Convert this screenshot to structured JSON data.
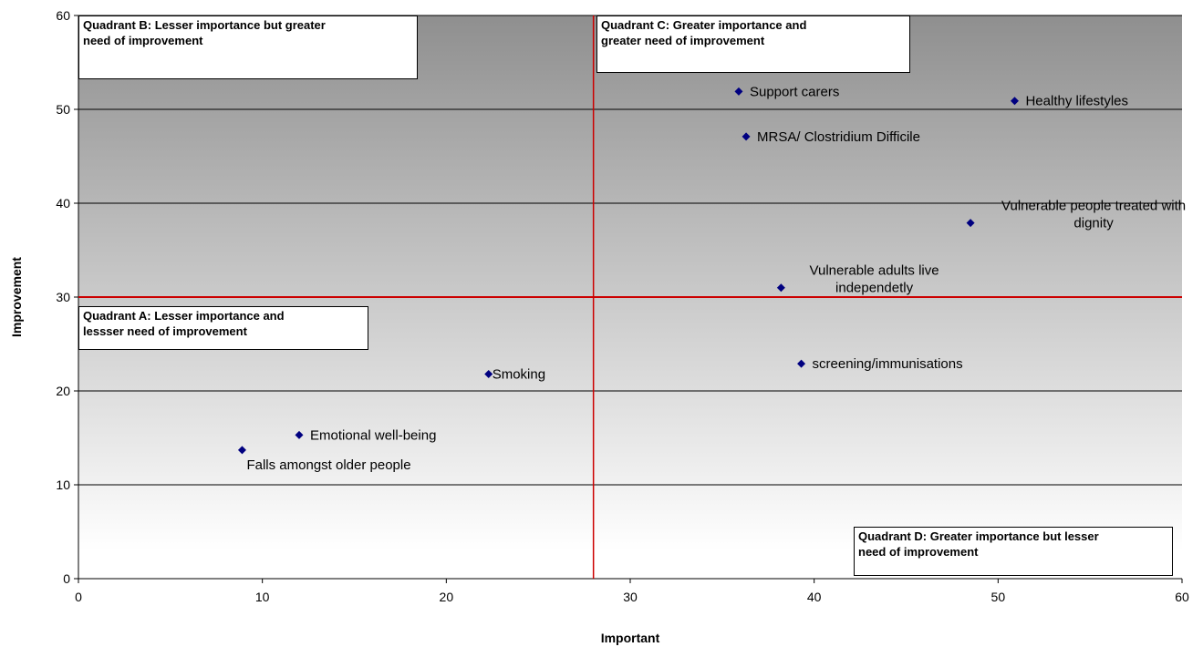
{
  "chart_data": {
    "type": "scatter",
    "xlabel": "Important",
    "ylabel": "Improvement",
    "xlim": [
      0,
      60
    ],
    "ylim": [
      0,
      60
    ],
    "xticks": [
      0,
      10,
      20,
      30,
      40,
      50,
      60
    ],
    "yticks": [
      0,
      10,
      20,
      30,
      40,
      50,
      60
    ],
    "grid": "horizontal",
    "quadrant_lines": {
      "x": 28,
      "y": 30
    },
    "colors": {
      "marker": "#000080",
      "quadrant_line": "#cc0000",
      "bg_top": "#8f8f8f",
      "bg_bottom": "#ffffff"
    },
    "points": [
      {
        "label": "Support carers",
        "x": 35.9,
        "y": 51.9,
        "label_pos": "right"
      },
      {
        "label": "Healthy lifestyles",
        "x": 50.9,
        "y": 50.9,
        "label_pos": "right"
      },
      {
        "label": "MRSA/ Clostridium Difficile",
        "x": 36.3,
        "y": 47.1,
        "label_pos": "right"
      },
      {
        "label": "Vulnerable people treated with dignity",
        "x": 48.5,
        "y": 37.9,
        "label_pos": "above-right-wrap",
        "label_lines": [
          "Vulnerable people treated with",
          "dignity"
        ]
      },
      {
        "label": "Vulnerable adults live independetly",
        "x": 38.2,
        "y": 31.0,
        "label_pos": "above-right-wrap",
        "label_lines": [
          "Vulnerable adults live",
          "independetly"
        ]
      },
      {
        "label": "screening/immunisations",
        "x": 39.3,
        "y": 22.9,
        "label_pos": "right"
      },
      {
        "label": "Smoking",
        "x": 22.3,
        "y": 21.8,
        "label_pos": "right-tight"
      },
      {
        "label": "Emotional well-being",
        "x": 12.0,
        "y": 15.3,
        "label_pos": "right"
      },
      {
        "label": "Falls amongst older people",
        "x": 8.9,
        "y": 13.7,
        "label_pos": "below-right"
      }
    ],
    "quadrants": [
      {
        "name": "Quadrant B: Lesser importance but greater need of improvement",
        "lines": [
          "Quadrant B: Lesser importance but greater",
          "need of improvement"
        ]
      },
      {
        "name": "Quadrant C: Greater importance and greater need of improvement",
        "lines": [
          "Quadrant C: Greater importance and",
          "greater need of improvement"
        ]
      },
      {
        "name": "Quadrant A: Lesser importance and lessser need of improvement",
        "lines": [
          "Quadrant A: Lesser importance and",
          "lessser need of improvement"
        ]
      },
      {
        "name": "Quadrant D: Greater importance but lesser need of improvement",
        "lines": [
          "Quadrant D: Greater importance but lesser",
          "need of improvement"
        ]
      }
    ]
  }
}
